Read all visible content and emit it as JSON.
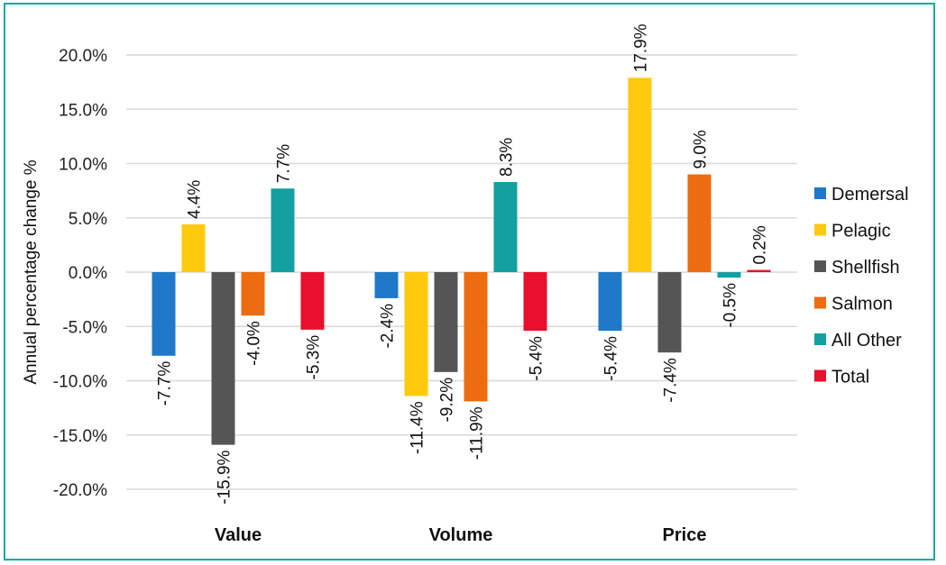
{
  "chart_data": {
    "type": "bar",
    "ylabel": "Annual percentage change %",
    "ylim": [
      -20,
      20
    ],
    "yticks": [
      20,
      15,
      10,
      5,
      0,
      -5,
      -10,
      -15,
      -20
    ],
    "ytick_labels": [
      "20.0%",
      "15.0%",
      "10.0%",
      "5.0%",
      "0.0%",
      "-5.0%",
      "-10.0%",
      "-15.0%",
      "-20.0%"
    ],
    "categories": [
      "Value",
      "Volume",
      "Price"
    ],
    "legend_position": "right",
    "grid": true,
    "series": [
      {
        "name": "Demersal",
        "color": "#1f78c8",
        "values": [
          -7.7,
          -2.4,
          -5.4
        ],
        "labels": [
          "-7.7%",
          "-2.4%",
          "-5.4%"
        ]
      },
      {
        "name": "Pelagic",
        "color": "#ffc90e",
        "values": [
          4.4,
          -11.4,
          17.9
        ],
        "labels": [
          "4.4%",
          "-11.4%",
          "17.9%"
        ]
      },
      {
        "name": "Shellfish",
        "color": "#555555",
        "values": [
          -15.9,
          -9.2,
          -7.4
        ],
        "labels": [
          "-15.9%",
          "-9.2%",
          "-7.4%"
        ]
      },
      {
        "name": "Salmon",
        "color": "#ec6c0f",
        "values": [
          -4.0,
          -11.9,
          9.0
        ],
        "labels": [
          "-4.0%",
          "-11.9%",
          "9.0%"
        ]
      },
      {
        "name": "All Other",
        "color": "#13a0a0",
        "values": [
          7.7,
          8.3,
          -0.5
        ],
        "labels": [
          "7.7%",
          "8.3%",
          "-0.5%"
        ]
      },
      {
        "name": "Total",
        "color": "#e8102e",
        "values": [
          -5.3,
          -5.4,
          0.2
        ],
        "labels": [
          "-5.3%",
          "-5.4%",
          "0.2%"
        ]
      }
    ]
  }
}
